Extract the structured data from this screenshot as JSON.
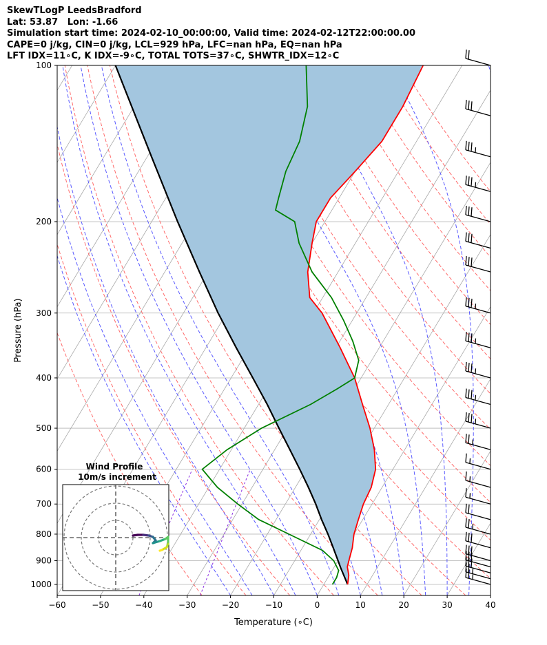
{
  "header": {
    "line1": "SkewTLogP LeedsBradford",
    "line2": "Lat: 53.87   Lon: -1.66",
    "line3": "Simulation start time: 2024-02-10_00:00:00, Valid time: 2024-02-12T22:00:00.00",
    "line4": "CAPE=0 j/kg, CIN=0 j/kg, LCL=929 hPa, LFC=nan hPa, EQ=nan hPa",
    "line5": "LFT IDX=11∘C, K IDX=-9∘C, TOTAL TOTS=37∘C, SHWTR_IDX=12∘C"
  },
  "inset": {
    "title": "Wind Profile",
    "subtitle": "10m/s increment"
  },
  "colors": {
    "temperature": "#ff0000",
    "dewpoint": "#008000",
    "parcel": "#000000",
    "fill": "#a3c6df",
    "dry_adiabat": "#ff6b6b",
    "moist_adiabat": "#5a5aff",
    "mixing_ratio": "#8a2be2",
    "isotherm": "#a9a9a9",
    "grid": "#b0b0b0"
  },
  "chart_data": {
    "type": "line",
    "subtype": "skew-T log-P",
    "xlabel": "Temperature (∘C)",
    "ylabel": "Pressure (hPa)",
    "xlim": [
      -60,
      40
    ],
    "ylim": [
      1050,
      100
    ],
    "x_ticks": [
      -60,
      -50,
      -40,
      -30,
      -20,
      -10,
      0,
      10,
      20,
      30,
      40
    ],
    "x_tick_labels": [
      "−60",
      "−50",
      "−40",
      "−30",
      "−20",
      "−10",
      "0",
      "10",
      "20",
      "30",
      "40"
    ],
    "y_ticks": [
      1000,
      900,
      800,
      700,
      600,
      500,
      400,
      300,
      200,
      100
    ],
    "y_scale": "log",
    "grid": true,
    "series": [
      {
        "name": "",
        "role": "temperature",
        "points": [
          [
            1000,
            5.5
          ],
          [
            960,
            4.5
          ],
          [
            925,
            3
          ],
          [
            900,
            2.5
          ],
          [
            850,
            1.5
          ],
          [
            800,
            0
          ],
          [
            750,
            -1
          ],
          [
            700,
            -2
          ],
          [
            650,
            -2.5
          ],
          [
            600,
            -4
          ],
          [
            550,
            -7
          ],
          [
            500,
            -11
          ],
          [
            450,
            -16
          ],
          [
            400,
            -21.5
          ],
          [
            350,
            -29
          ],
          [
            300,
            -38
          ],
          [
            280,
            -43
          ],
          [
            250,
            -47
          ],
          [
            220,
            -50
          ],
          [
            200,
            -52
          ],
          [
            180,
            -52
          ],
          [
            160,
            -50
          ],
          [
            140,
            -48
          ],
          [
            120,
            -48
          ],
          [
            100,
            -49
          ]
        ]
      },
      {
        "name": "",
        "role": "dewpoint",
        "points": [
          [
            1000,
            2
          ],
          [
            970,
            2
          ],
          [
            940,
            1.5
          ],
          [
            900,
            -1
          ],
          [
            860,
            -5
          ],
          [
            800,
            -15
          ],
          [
            750,
            -24
          ],
          [
            700,
            -31
          ],
          [
            650,
            -38
          ],
          [
            600,
            -44
          ],
          [
            550,
            -41
          ],
          [
            500,
            -36
          ],
          [
            450,
            -28
          ],
          [
            420,
            -24
          ],
          [
            400,
            -21.5
          ],
          [
            370,
            -23
          ],
          [
            340,
            -27
          ],
          [
            310,
            -32
          ],
          [
            280,
            -38
          ],
          [
            250,
            -46
          ],
          [
            220,
            -53
          ],
          [
            200,
            -57
          ],
          [
            190,
            -63
          ],
          [
            180,
            -64
          ],
          [
            160,
            -66
          ],
          [
            140,
            -67
          ],
          [
            120,
            -70
          ],
          [
            100,
            -76
          ]
        ]
      },
      {
        "name": "",
        "role": "parcel",
        "points": [
          [
            1000,
            5.5
          ],
          [
            929,
            1.6
          ],
          [
            900,
            0
          ],
          [
            850,
            -2.9
          ],
          [
            800,
            -6
          ],
          [
            750,
            -9.5
          ],
          [
            700,
            -13
          ],
          [
            650,
            -17
          ],
          [
            600,
            -21.5
          ],
          [
            550,
            -26.5
          ],
          [
            500,
            -32
          ],
          [
            450,
            -38
          ],
          [
            400,
            -45
          ],
          [
            350,
            -53
          ],
          [
            300,
            -62
          ],
          [
            250,
            -72
          ],
          [
            200,
            -84
          ],
          [
            150,
            -99
          ],
          [
            100,
            -120
          ]
        ]
      }
    ],
    "wind_barbs": {
      "pressures": [
        1000,
        975,
        950,
        925,
        900,
        850,
        800,
        750,
        700,
        650,
        600,
        550,
        500,
        450,
        400,
        350,
        300,
        250,
        225,
        200,
        175,
        150,
        125,
        100
      ],
      "speeds_kt": [
        25,
        25,
        30,
        30,
        30,
        30,
        25,
        20,
        15,
        15,
        15,
        25,
        35,
        35,
        35,
        35,
        35,
        30,
        30,
        30,
        35,
        35,
        30,
        20
      ]
    },
    "hodograph": {
      "title": "Wind Profile",
      "subtitle": "10m/s increment",
      "ring_speeds_ms": [
        10,
        20,
        30
      ],
      "colormap": "viridis"
    }
  }
}
